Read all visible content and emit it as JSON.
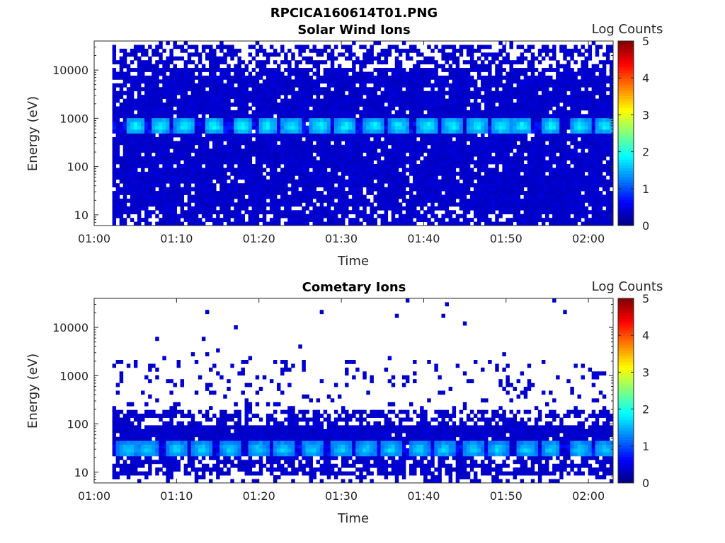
{
  "figure": {
    "title": "RPCICA160614T01.PNG"
  },
  "chart_data": [
    {
      "type": "heatmap",
      "title": "Solar Wind Ions",
      "xlabel": "Time",
      "ylabel": "Energy (eV)",
      "colorbar_label": "Log Counts",
      "x_ticks": [
        "01:00",
        "01:10",
        "01:20",
        "01:30",
        "01:40",
        "01:50",
        "02:00"
      ],
      "x_range_minutes": [
        0,
        63
      ],
      "data_x_range_minutes": [
        2.2,
        63
      ],
      "y_scale": "log",
      "y_ticks": [
        "10",
        "100",
        "1000",
        "10000"
      ],
      "y_range": [
        6,
        40000
      ],
      "c_range": [
        0,
        5
      ],
      "c_ticks": [
        "0",
        "1",
        "2",
        "3",
        "4",
        "5"
      ],
      "colormap": "jet",
      "background_level": 0.3,
      "peak_energy_eV": 700,
      "peak_level_range": [
        1.2,
        1.9
      ],
      "peak_times_minutes": [
        5,
        8,
        11,
        14.5,
        18,
        21,
        24,
        27.5,
        30.5,
        34,
        37,
        40.5,
        43.5,
        46.5,
        49.5,
        52,
        55.5,
        59,
        62
      ]
    },
    {
      "type": "heatmap",
      "title": "Cometary Ions",
      "xlabel": "Time",
      "ylabel": "Energy (eV)",
      "colorbar_label": "Log Counts",
      "x_ticks": [
        "01:00",
        "01:10",
        "01:20",
        "01:30",
        "01:40",
        "01:50",
        "02:00"
      ],
      "x_range_minutes": [
        0,
        63
      ],
      "data_x_range_minutes": [
        2.2,
        63
      ],
      "y_scale": "log",
      "y_ticks": [
        "10",
        "100",
        "1000",
        "10000"
      ],
      "y_range": [
        6,
        40000
      ],
      "c_range": [
        0,
        5
      ],
      "c_ticks": [
        "0",
        "1",
        "2",
        "3",
        "4",
        "5"
      ],
      "colormap": "jet",
      "background_level": 0.3,
      "peak_energy_eV": 30,
      "peak_level_range": [
        1.1,
        1.7
      ],
      "peak_times_minutes": [
        4,
        6.5,
        10,
        13,
        16.5,
        20,
        23,
        26.5,
        30,
        33,
        36,
        39.5,
        42.5,
        46,
        49,
        52.5,
        55.5,
        59,
        62
      ]
    }
  ]
}
